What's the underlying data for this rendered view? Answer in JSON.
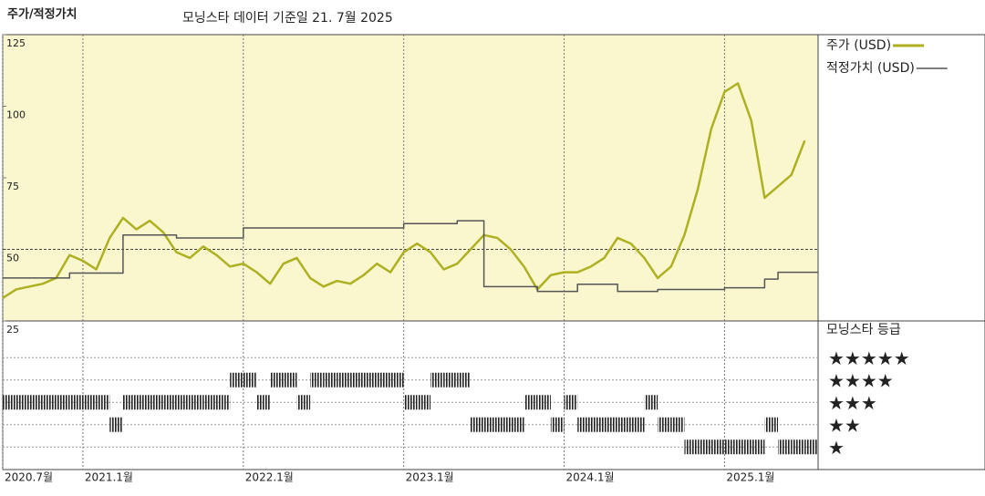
{
  "chart_data": {
    "type": "line",
    "title": "주가/적정가치",
    "subtitle": "모닝스타 데이터 기준일 21. 7월 2025",
    "x": [
      "2020-07",
      "2020-08",
      "2020-09",
      "2020-10",
      "2020-11",
      "2020-12",
      "2021-01",
      "2021-02",
      "2021-03",
      "2021-04",
      "2021-05",
      "2021-06",
      "2021-07",
      "2021-08",
      "2021-09",
      "2021-10",
      "2021-11",
      "2021-12",
      "2022-01",
      "2022-02",
      "2022-03",
      "2022-04",
      "2022-05",
      "2022-06",
      "2022-07",
      "2022-08",
      "2022-09",
      "2022-10",
      "2022-11",
      "2022-12",
      "2023-01",
      "2023-02",
      "2023-03",
      "2023-04",
      "2023-05",
      "2023-06",
      "2023-07",
      "2023-08",
      "2023-09",
      "2023-10",
      "2023-11",
      "2023-12",
      "2024-01",
      "2024-02",
      "2024-03",
      "2024-04",
      "2024-05",
      "2024-06",
      "2024-07",
      "2024-08",
      "2024-09",
      "2024-10",
      "2024-11",
      "2024-12",
      "2025-01",
      "2025-02",
      "2025-03",
      "2025-04",
      "2025-05",
      "2025-06",
      "2025-07"
    ],
    "series": [
      {
        "name": "주가 (USD)",
        "color": "#aeb022",
        "values": [
          33,
          36,
          37,
          38,
          40,
          48,
          46,
          43,
          54,
          61,
          57,
          60,
          56,
          49,
          47,
          51,
          48,
          44,
          45,
          42,
          38,
          45,
          47,
          40,
          37,
          39,
          38,
          41,
          45,
          42,
          49,
          52,
          49,
          43,
          45,
          50,
          55,
          54,
          50,
          44,
          36,
          41,
          42,
          42,
          44,
          47,
          54,
          52,
          47,
          40,
          44,
          55,
          71,
          92,
          105,
          108,
          95,
          68,
          72,
          76,
          88
        ]
      },
      {
        "name": "적정가치 (USD)",
        "color": "#555555",
        "step": true,
        "values": [
          40,
          40,
          40,
          40,
          40,
          41.7,
          41.7,
          41.7,
          41.7,
          55,
          55,
          55,
          55,
          54,
          54,
          54,
          54,
          54,
          57.5,
          57.5,
          57.5,
          57.5,
          57.5,
          57.5,
          57.5,
          57.5,
          57.5,
          57.5,
          57.5,
          57.5,
          59,
          59,
          59,
          59,
          60,
          60,
          37,
          37,
          37,
          37,
          35.3,
          35.3,
          35.3,
          37.8,
          37.8,
          37.8,
          35.3,
          35.3,
          35.3,
          36,
          36,
          36,
          36,
          36,
          36.6,
          36.6,
          36.6,
          39.6,
          42,
          42,
          42
        ]
      }
    ],
    "rating": {
      "title": "모닝스타 등급",
      "levels": [
        "★★★★★",
        "★★★★",
        "★★★",
        "★★",
        "★"
      ],
      "values": [
        3,
        3,
        3,
        3,
        3,
        3,
        3,
        3,
        2,
        3,
        3,
        3,
        3,
        3,
        3,
        3,
        3,
        4,
        4,
        3,
        4,
        4,
        3,
        4,
        4,
        4,
        4,
        4,
        4,
        4,
        3,
        3,
        4,
        4,
        4,
        2,
        2,
        2,
        2,
        3,
        3,
        2,
        3,
        2,
        2,
        2,
        2,
        2,
        3,
        2,
        2,
        1,
        1,
        1,
        1,
        1,
        1,
        2,
        1,
        1,
        1
      ]
    },
    "xlim": [
      "2020-07",
      "2025-08"
    ],
    "xticks": [
      {
        "value": "2020-07",
        "label": "2020.7월"
      },
      {
        "value": "2021-01",
        "label": "2021.1월"
      },
      {
        "value": "2022-01",
        "label": "2022.1월"
      },
      {
        "value": "2023-01",
        "label": "2023.1월"
      },
      {
        "value": "2024-01",
        "label": "2024.1월"
      },
      {
        "value": "2025-01",
        "label": "2025.1월"
      }
    ],
    "ylim": [
      25,
      125
    ],
    "yticks": [
      25,
      50,
      75,
      100,
      125
    ],
    "hline": 50
  }
}
